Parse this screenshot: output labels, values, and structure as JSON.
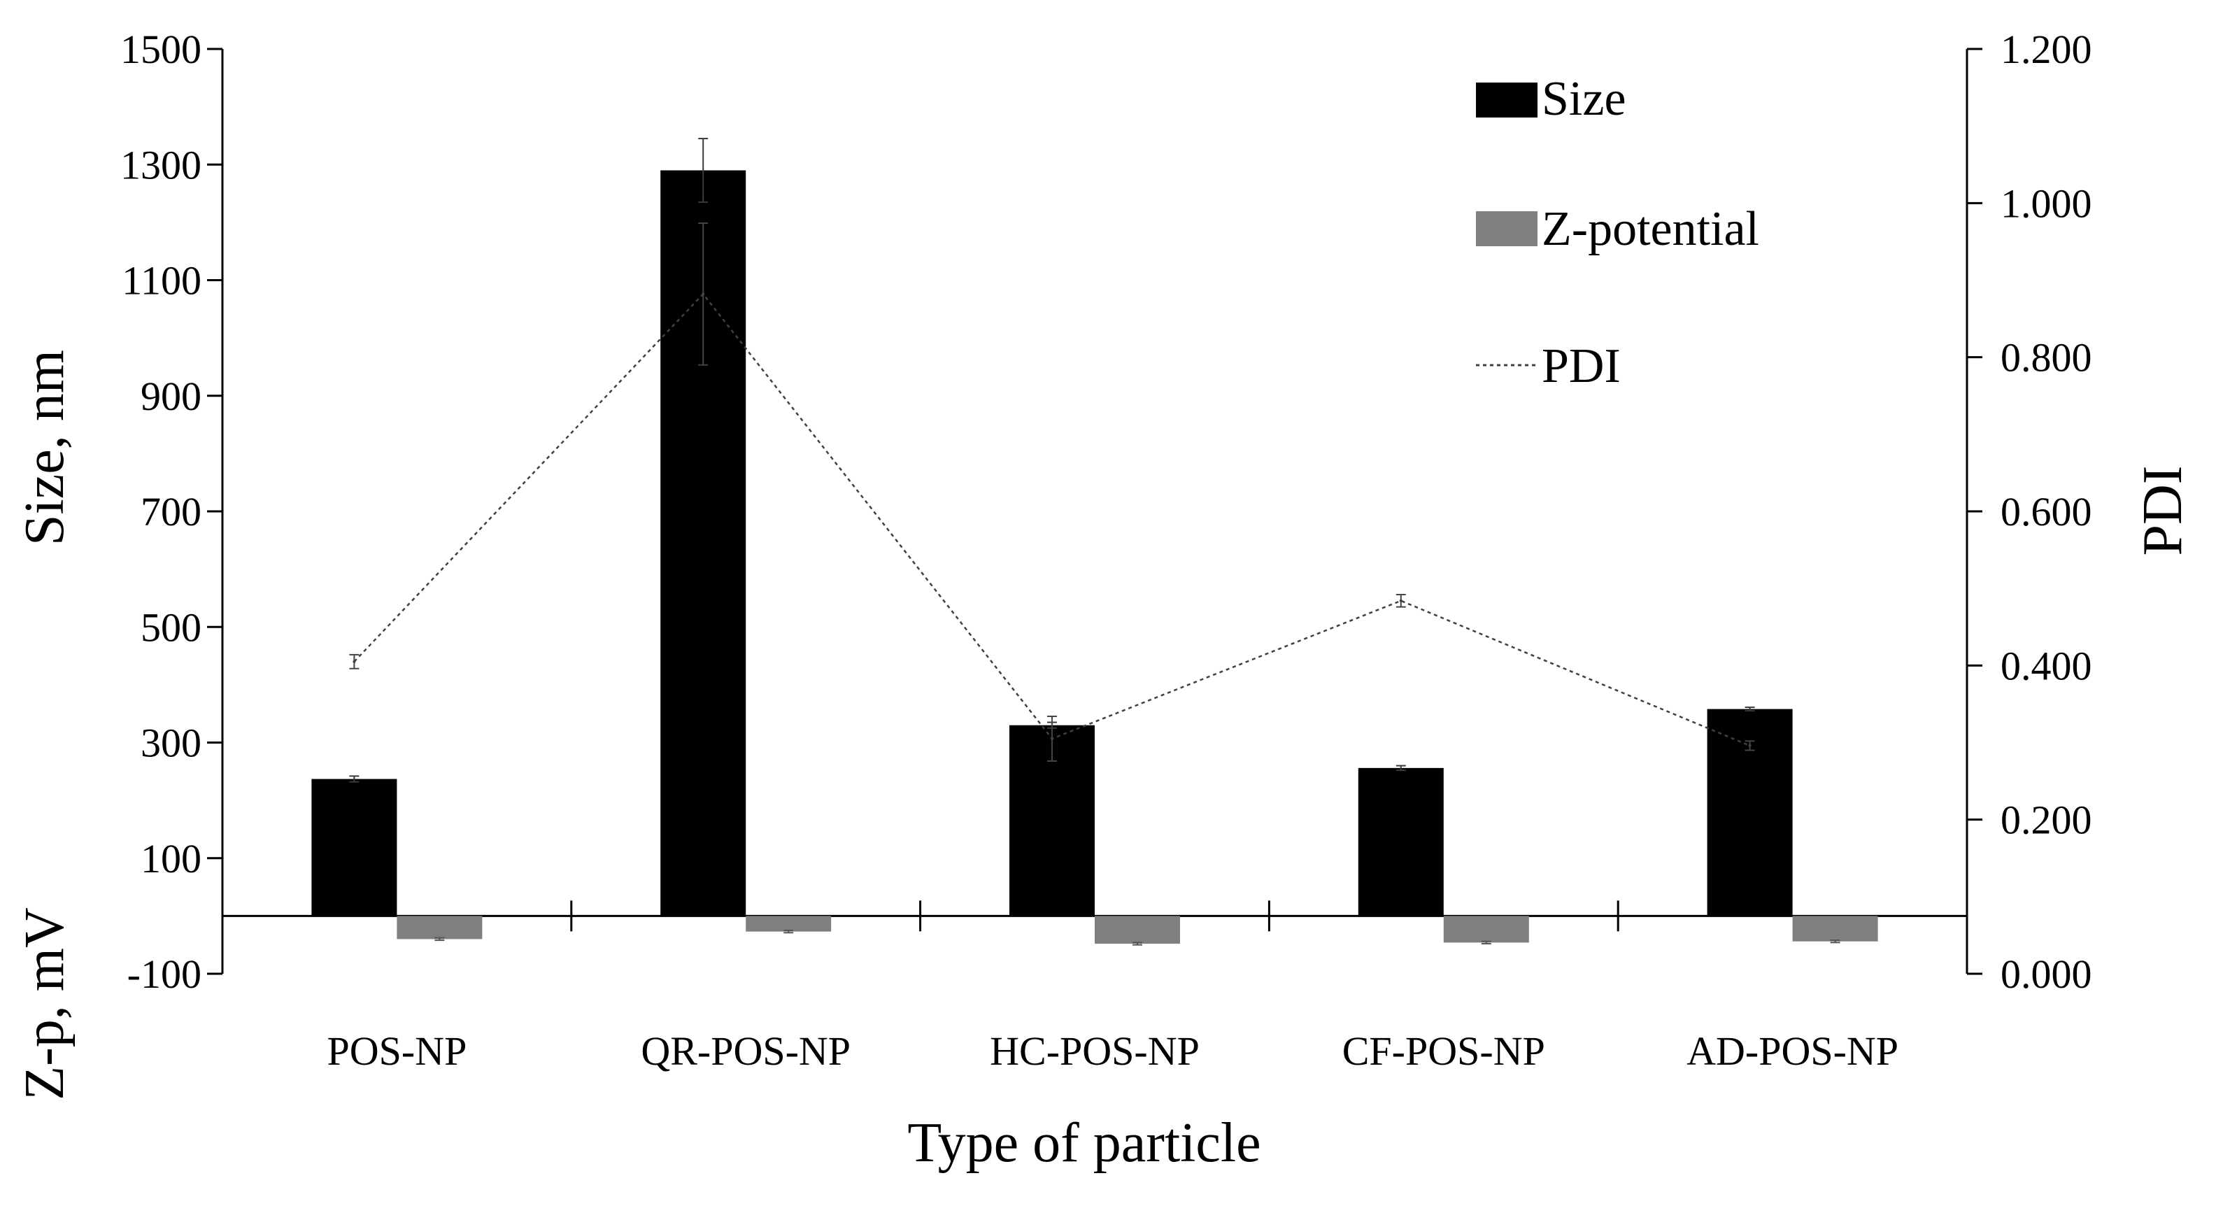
{
  "chart_data": {
    "type": "bar",
    "title": "",
    "categories": [
      "POS-NP",
      "QR-POS-NP",
      "HC-POS-NP",
      "CF-POS-NP",
      "AD-POS-NP"
    ],
    "series": [
      {
        "name": "Size",
        "kind": "bar",
        "axis": "left",
        "color": "#000000",
        "values": [
          237,
          1290,
          330,
          256,
          358
        ],
        "errors": [
          5,
          55,
          5,
          4,
          3
        ]
      },
      {
        "name": "Z-potential",
        "kind": "bar",
        "axis": "left",
        "color": "#7f7f7f",
        "values": [
          -40,
          -27,
          -48,
          -46,
          -44
        ],
        "errors": [
          2,
          2,
          2,
          2,
          2
        ]
      },
      {
        "name": "PDI",
        "kind": "line",
        "axis": "right",
        "color": "#404040",
        "dash": "dotted",
        "values": [
          0.405,
          0.882,
          0.305,
          0.484,
          0.296
        ],
        "errors": [
          0.009,
          0.092,
          0.029,
          0.008,
          0.006
        ]
      }
    ],
    "xlabel": "Type of particle",
    "ylabel_left_top": "Size, nm",
    "ylabel_left_bottom": "Z-p, mV",
    "ylabel_right": "PDI",
    "ylim_left": [
      -100,
      1500
    ],
    "yticks_left": [
      "-100",
      "100",
      "300",
      "500",
      "700",
      "900",
      "1100",
      "1300",
      "1500"
    ],
    "ylim_right": [
      0,
      1.2
    ],
    "yticks_right": [
      "0.000",
      "0.200",
      "0.400",
      "0.600",
      "0.800",
      "1.000",
      "1.200"
    ],
    "legend_position": "top-right",
    "grid": false
  }
}
